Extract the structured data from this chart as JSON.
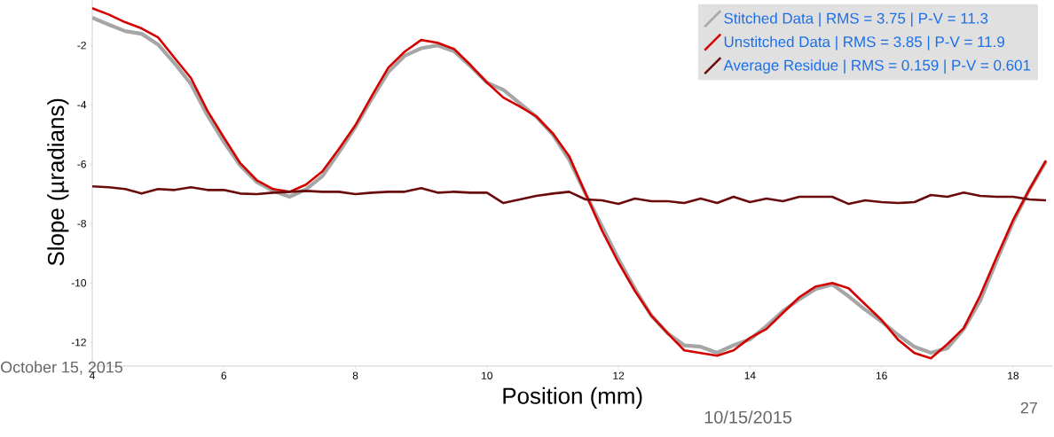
{
  "chart_data": {
    "type": "line",
    "xlabel": "Position (mm)",
    "ylabel": "Slope (µradians)",
    "x": [
      4,
      4.25,
      4.5,
      4.75,
      5,
      5.25,
      5.5,
      5.75,
      6,
      6.25,
      6.5,
      6.75,
      7,
      7.25,
      7.5,
      7.75,
      8,
      8.25,
      8.5,
      8.75,
      9,
      9.25,
      9.5,
      9.75,
      10,
      10.25,
      10.5,
      10.75,
      11,
      11.25,
      11.5,
      11.75,
      12,
      12.25,
      12.5,
      12.75,
      13,
      13.25,
      13.5,
      13.75,
      14,
      14.25,
      14.5,
      14.75,
      15,
      15.25,
      15.5,
      15.75,
      16,
      16.25,
      16.5,
      16.75,
      17,
      17.25,
      17.5,
      17.75,
      18,
      18.25,
      18.5
    ],
    "series": [
      {
        "name": "Stitched Data | RMS = 3.75 | P-V = 11.3",
        "color": "#a6a6a6",
        "values": [
          -1.07,
          -1.3,
          -1.52,
          -1.61,
          -1.97,
          -2.6,
          -3.3,
          -4.35,
          -5.25,
          -6.05,
          -6.6,
          -6.9,
          -7.1,
          -6.85,
          -6.4,
          -5.6,
          -4.75,
          -3.8,
          -2.9,
          -2.35,
          -2.1,
          -2.0,
          -2.2,
          -2.7,
          -3.25,
          -3.5,
          -3.95,
          -4.4,
          -5.0,
          -5.85,
          -7.0,
          -8.1,
          -9.2,
          -10.2,
          -11.1,
          -11.7,
          -12.1,
          -12.15,
          -12.35,
          -12.1,
          -11.9,
          -11.45,
          -10.95,
          -10.55,
          -10.2,
          -10.05,
          -10.45,
          -10.9,
          -11.3,
          -11.75,
          -12.15,
          -12.35,
          -12.2,
          -11.55,
          -10.6,
          -9.25,
          -7.95,
          -6.85,
          -5.9
        ]
      },
      {
        "name": "Unstitched Data | RMS = 3.85 | P-V = 11.9",
        "color": "#d40000",
        "values": [
          -0.75,
          -0.96,
          -1.22,
          -1.43,
          -1.73,
          -2.42,
          -3.1,
          -4.2,
          -5.1,
          -5.97,
          -6.54,
          -6.84,
          -6.93,
          -6.69,
          -6.24,
          -5.49,
          -4.69,
          -3.7,
          -2.75,
          -2.21,
          -1.82,
          -1.91,
          -2.12,
          -2.66,
          -3.25,
          -3.76,
          -4.06,
          -4.39,
          -4.96,
          -5.73,
          -6.99,
          -8.24,
          -9.31,
          -10.27,
          -11.1,
          -11.7,
          -12.27,
          -12.36,
          -12.45,
          -12.27,
          -11.85,
          -11.55,
          -11.01,
          -10.48,
          -10.12,
          -10.0,
          -10.18,
          -10.72,
          -11.25,
          -11.91,
          -12.36,
          -12.54,
          -12.06,
          -11.52,
          -10.42,
          -9.13,
          -7.88,
          -6.84,
          -5.88
        ]
      },
      {
        "name": "Average Residue | RMS = 0.159 | P-V = 0.601",
        "color": "#6b0a0a",
        "values": [
          -6.75,
          -6.78,
          -6.84,
          -6.99,
          -6.84,
          -6.87,
          -6.78,
          -6.87,
          -6.87,
          -6.99,
          -7.01,
          -6.96,
          -6.93,
          -6.9,
          -6.93,
          -6.93,
          -7.01,
          -6.96,
          -6.93,
          -6.93,
          -6.81,
          -6.96,
          -6.93,
          -6.96,
          -6.96,
          -7.31,
          -7.19,
          -7.07,
          -6.99,
          -6.93,
          -7.19,
          -7.22,
          -7.34,
          -7.16,
          -7.25,
          -7.25,
          -7.31,
          -7.16,
          -7.31,
          -7.1,
          -7.28,
          -7.16,
          -7.25,
          -7.1,
          -7.1,
          -7.1,
          -7.34,
          -7.22,
          -7.28,
          -7.31,
          -7.28,
          -7.04,
          -7.1,
          -6.96,
          -7.07,
          -7.1,
          -7.1,
          -7.19,
          -7.22
        ]
      }
    ],
    "xlim": [
      4,
      18.6
    ],
    "ylim": [
      -12.8,
      -0.4
    ],
    "xticks": [
      4,
      6,
      8,
      10,
      12,
      14,
      16,
      18
    ],
    "yticks": [
      -12,
      -10,
      -8,
      -6,
      -4,
      -2
    ],
    "legend": "top right",
    "grid": false,
    "marker": "none",
    "line_style": "solid",
    "annotations": [
      "October 15, 2015",
      "10/15/2015",
      "27"
    ]
  }
}
